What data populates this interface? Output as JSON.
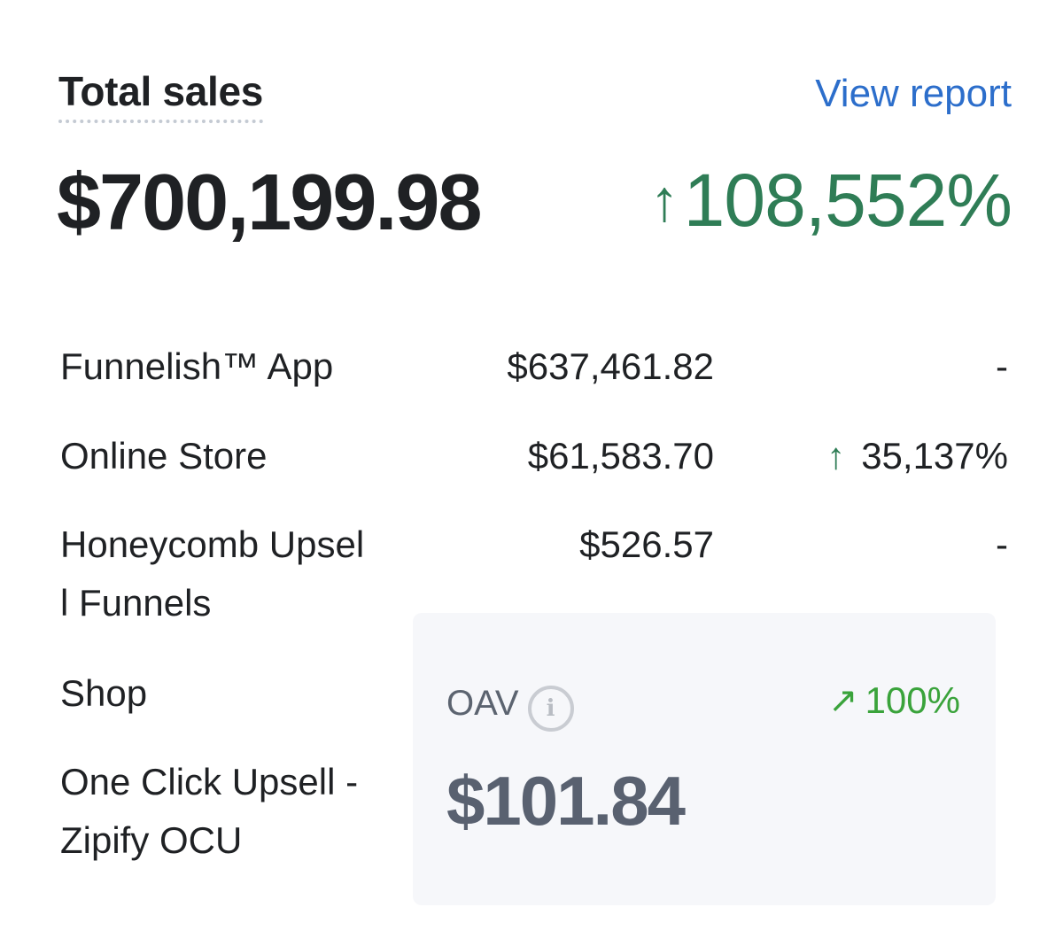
{
  "header": {
    "title": "Total sales",
    "link_label": "View report"
  },
  "summary": {
    "total_value": "$700,199.98",
    "change_arrow": "↑",
    "change_value": "108,552%",
    "change_color": "#2f7d56"
  },
  "channels": [
    {
      "label": "Funnelish™ App",
      "amount": "$637,461.82",
      "change": "-",
      "change_arrow": ""
    },
    {
      "label": "Online Store",
      "amount": "$61,583.70",
      "change": "35,137%",
      "change_arrow": "↑"
    },
    {
      "label": "Honeycomb Upsell Funnels",
      "amount": "$526.57",
      "change": "-",
      "change_arrow": ""
    },
    {
      "label": "Shop",
      "amount": "",
      "change": "",
      "change_arrow": ""
    },
    {
      "label": "One Click Upsell - Zipify OCU",
      "amount": "",
      "change": "",
      "change_arrow": ""
    }
  ],
  "oav_card": {
    "label": "OAV",
    "info_icon": "info-icon",
    "info_glyph": "i",
    "change_arrow": "↗",
    "change_value": "100%",
    "change_color": "#3aa33b",
    "value": "$101.84"
  },
  "colors": {
    "link": "#2c6ecb",
    "text": "#1f2124",
    "card_background": "#f6f7fa"
  }
}
